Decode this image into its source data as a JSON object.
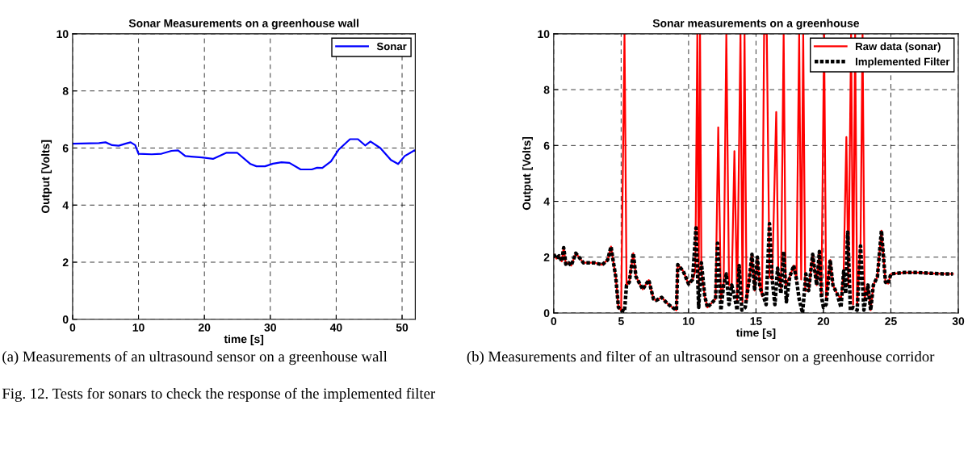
{
  "chart_data": [
    {
      "type": "line",
      "title": "Sonar Measurements on a greenhouse wall",
      "xlabel": "time [s]",
      "ylabel": "Output [Volts]",
      "xlim": [
        0,
        52
      ],
      "ylim": [
        0,
        10
      ],
      "xticks": [
        0,
        10,
        20,
        30,
        40,
        50
      ],
      "yticks": [
        0,
        2,
        4,
        6,
        8,
        10
      ],
      "grid": true,
      "legend": "top right",
      "line_style": "solid",
      "series": [
        {
          "name": "Sonar",
          "color": "#0000ff",
          "x": [
            0,
            4,
            5,
            6,
            7,
            8,
            8.8,
            9.5,
            10,
            12,
            13.5,
            15,
            16,
            17.1,
            18,
            19.6,
            21.3,
            23.3,
            25,
            27,
            27.9,
            29.2,
            30.4,
            31.7,
            32.9,
            34.6,
            36.3,
            37.1,
            37.9,
            39.2,
            40.4,
            42.1,
            43.3,
            44.4,
            45.2,
            46.7,
            48.3,
            49.4,
            50.4,
            51.9,
            52
          ],
          "values": [
            6.15,
            6.17,
            6.2,
            6.1,
            6.08,
            6.15,
            6.2,
            6.1,
            5.8,
            5.78,
            5.8,
            5.9,
            5.92,
            5.72,
            5.7,
            5.67,
            5.62,
            5.83,
            5.83,
            5.44,
            5.36,
            5.36,
            5.45,
            5.5,
            5.48,
            5.25,
            5.25,
            5.31,
            5.3,
            5.53,
            5.95,
            6.31,
            6.31,
            6.09,
            6.23,
            6,
            5.58,
            5.44,
            5.72,
            5.92,
            5.9
          ]
        }
      ],
      "annotations": [
        "(a) Measurements of an ultrasound sensor on a greenhouse wall",
        "Fig. 12. Tests for sonars to check the response of the implemented filter"
      ]
    },
    {
      "type": "line",
      "title": "Sonar measurements on a greenhouse",
      "xlabel": "time [s]",
      "ylabel": "Output [Volts]",
      "xlim": [
        0,
        30
      ],
      "ylim": [
        0,
        10
      ],
      "xticks": [
        0,
        5,
        10,
        15,
        20,
        25,
        30
      ],
      "yticks": [
        0,
        2,
        4,
        6,
        8,
        10
      ],
      "grid": true,
      "legend": "top right",
      "series": [
        {
          "name": "Raw data (sonar)",
          "color": "#ff0000",
          "line_style": "solid",
          "x": [
            0,
            0.2,
            0.4,
            0.6,
            0.74,
            0.9,
            1.1,
            1.3,
            1.64,
            2.2,
            3,
            3.6,
            4,
            4.25,
            4.4,
            4.6,
            4.8,
            5.0,
            5.25,
            5.4,
            5.6,
            5.9,
            6.1,
            6.6,
            7.05,
            7.4,
            7.6,
            8.0,
            8.4,
            8.8,
            9.1,
            9.2,
            9.6,
            10.0,
            10.3,
            10.5,
            10.65,
            10.75,
            10.85,
            10.95,
            11.2,
            11.4,
            11.7,
            12.0,
            12.2,
            12.4,
            12.6,
            12.8,
            13.0,
            13.2,
            13.4,
            13.6,
            13.85,
            14.0,
            14.15,
            14.3,
            14.5,
            14.7,
            14.9,
            15.1,
            15.3,
            15.45,
            15.6,
            15.8,
            16.0,
            16.2,
            16.5,
            16.65,
            16.85,
            17.05,
            17.2,
            17.5,
            17.8,
            18.0,
            18.2,
            18.35,
            18.5,
            18.65,
            18.9,
            19.2,
            19.5,
            19.7,
            19.85,
            20.05,
            20.2,
            20.5,
            20.7,
            21.0,
            21.3,
            21.5,
            21.7,
            21.85,
            22.05,
            22.2,
            22.35,
            22.5,
            22.75,
            22.9,
            23.05,
            23.3,
            23.5,
            23.7,
            24.0,
            24.3,
            24.6,
            24.8,
            25.0,
            26,
            27,
            28,
            29,
            29.6
          ],
          "values": [
            2.1,
            1.95,
            2.05,
            1.85,
            2.34,
            1.75,
            1.8,
            1.7,
            2.14,
            1.8,
            1.8,
            1.73,
            1.9,
            2.38,
            1.9,
            1.3,
            0.2,
            0.1,
            10,
            1.0,
            1.1,
            2.14,
            1.3,
            0.85,
            1.18,
            0.5,
            0.45,
            0.56,
            0.35,
            0.2,
            0.1,
            1.73,
            1.5,
            1.04,
            1.2,
            1.5,
            10,
            1.0,
            10,
            1.5,
            0.6,
            0.2,
            0.35,
            0.5,
            6.65,
            0.5,
            1.0,
            10,
            1.0,
            1.0,
            5.8,
            0.4,
            10,
            0.4,
            10,
            0.4,
            1.2,
            2.1,
            0.8,
            2.0,
            0.9,
            0.6,
            10,
            10,
            1.3,
            1.2,
            7.2,
            1.5,
            0.9,
            10,
            1.0,
            1.3,
            1.7,
            1.2,
            10,
            1.2,
            10,
            0.8,
            0.8,
            2.1,
            1.0,
            2.2,
            0.6,
            10,
            0.5,
            1.9,
            1.0,
            0.7,
            0.5,
            1.5,
            6.3,
            1.0,
            10,
            0.3,
            10,
            0.3,
            2.4,
            10,
            0.5,
            1.0,
            0.1,
            1.0,
            1.3,
            2.95,
            1.1,
            1.05,
            1.4,
            1.45,
            1.45,
            1.42,
            1.4,
            1.4
          ]
        },
        {
          "name": "Implemented Filter",
          "color": "#000000",
          "line_style": "dotted",
          "x": [
            0,
            0.2,
            0.4,
            0.6,
            0.74,
            0.9,
            1.1,
            1.3,
            1.64,
            2.2,
            3,
            3.6,
            4,
            4.25,
            4.4,
            4.6,
            4.8,
            5.0,
            5.25,
            5.4,
            5.6,
            5.9,
            6.1,
            6.6,
            7.05,
            7.4,
            7.6,
            8.0,
            8.4,
            8.8,
            9.1,
            9.2,
            9.6,
            10.0,
            10.3,
            10.55,
            10.75,
            10.95,
            11.2,
            11.4,
            11.7,
            12.0,
            12.15,
            12.4,
            12.6,
            12.8,
            13.0,
            13.2,
            13.4,
            13.6,
            13.75,
            13.95,
            14.2,
            14.5,
            14.7,
            14.9,
            15.1,
            15.3,
            15.55,
            15.75,
            16.0,
            16.2,
            16.4,
            16.6,
            16.85,
            17.05,
            17.25,
            17.5,
            17.8,
            18.0,
            18.2,
            18.45,
            18.7,
            18.9,
            19.2,
            19.5,
            19.7,
            19.85,
            20.0,
            20.2,
            20.5,
            20.7,
            21.0,
            21.3,
            21.5,
            21.65,
            21.8,
            22.0,
            22.2,
            22.5,
            22.75,
            23.0,
            23.3,
            23.5,
            23.7,
            24.0,
            24.3,
            24.6,
            24.8,
            25.0,
            26,
            27,
            28,
            29,
            29.6
          ],
          "values": [
            2.1,
            1.95,
            2.05,
            1.85,
            2.34,
            1.75,
            1.8,
            1.7,
            2.14,
            1.8,
            1.8,
            1.73,
            1.9,
            2.38,
            1.9,
            1.3,
            0.2,
            0.1,
            0.05,
            1.0,
            1.1,
            2.14,
            1.3,
            0.85,
            1.18,
            0.5,
            0.45,
            0.56,
            0.35,
            0.2,
            0.1,
            1.73,
            1.5,
            1.04,
            1.2,
            3.05,
            0.2,
            1.8,
            0.6,
            0.2,
            0.35,
            0.5,
            2.5,
            0.1,
            1.0,
            1.4,
            0.3,
            1.0,
            0.6,
            0.1,
            1.7,
            0.1,
            0.2,
            1.2,
            2.1,
            0.8,
            2.0,
            0.9,
            0.6,
            0.3,
            3.2,
            1.2,
            0.3,
            1.6,
            0.7,
            2.2,
            0.4,
            1.3,
            1.7,
            1.2,
            0.5,
            0.0,
            1.4,
            0.8,
            2.1,
            1.0,
            2.2,
            0.6,
            0.2,
            0.3,
            1.9,
            1.0,
            0.7,
            0.2,
            1.5,
            0.7,
            2.9,
            0.1,
            0.2,
            0.1,
            2.4,
            0.1,
            1.0,
            0.1,
            1.0,
            1.3,
            2.95,
            1.1,
            1.05,
            1.4,
            1.45,
            1.45,
            1.42,
            1.4,
            1.4
          ]
        }
      ],
      "annotations": [
        "(b) Measurements and filter of an ultrasound sensor on a greenhouse corridor"
      ]
    }
  ]
}
